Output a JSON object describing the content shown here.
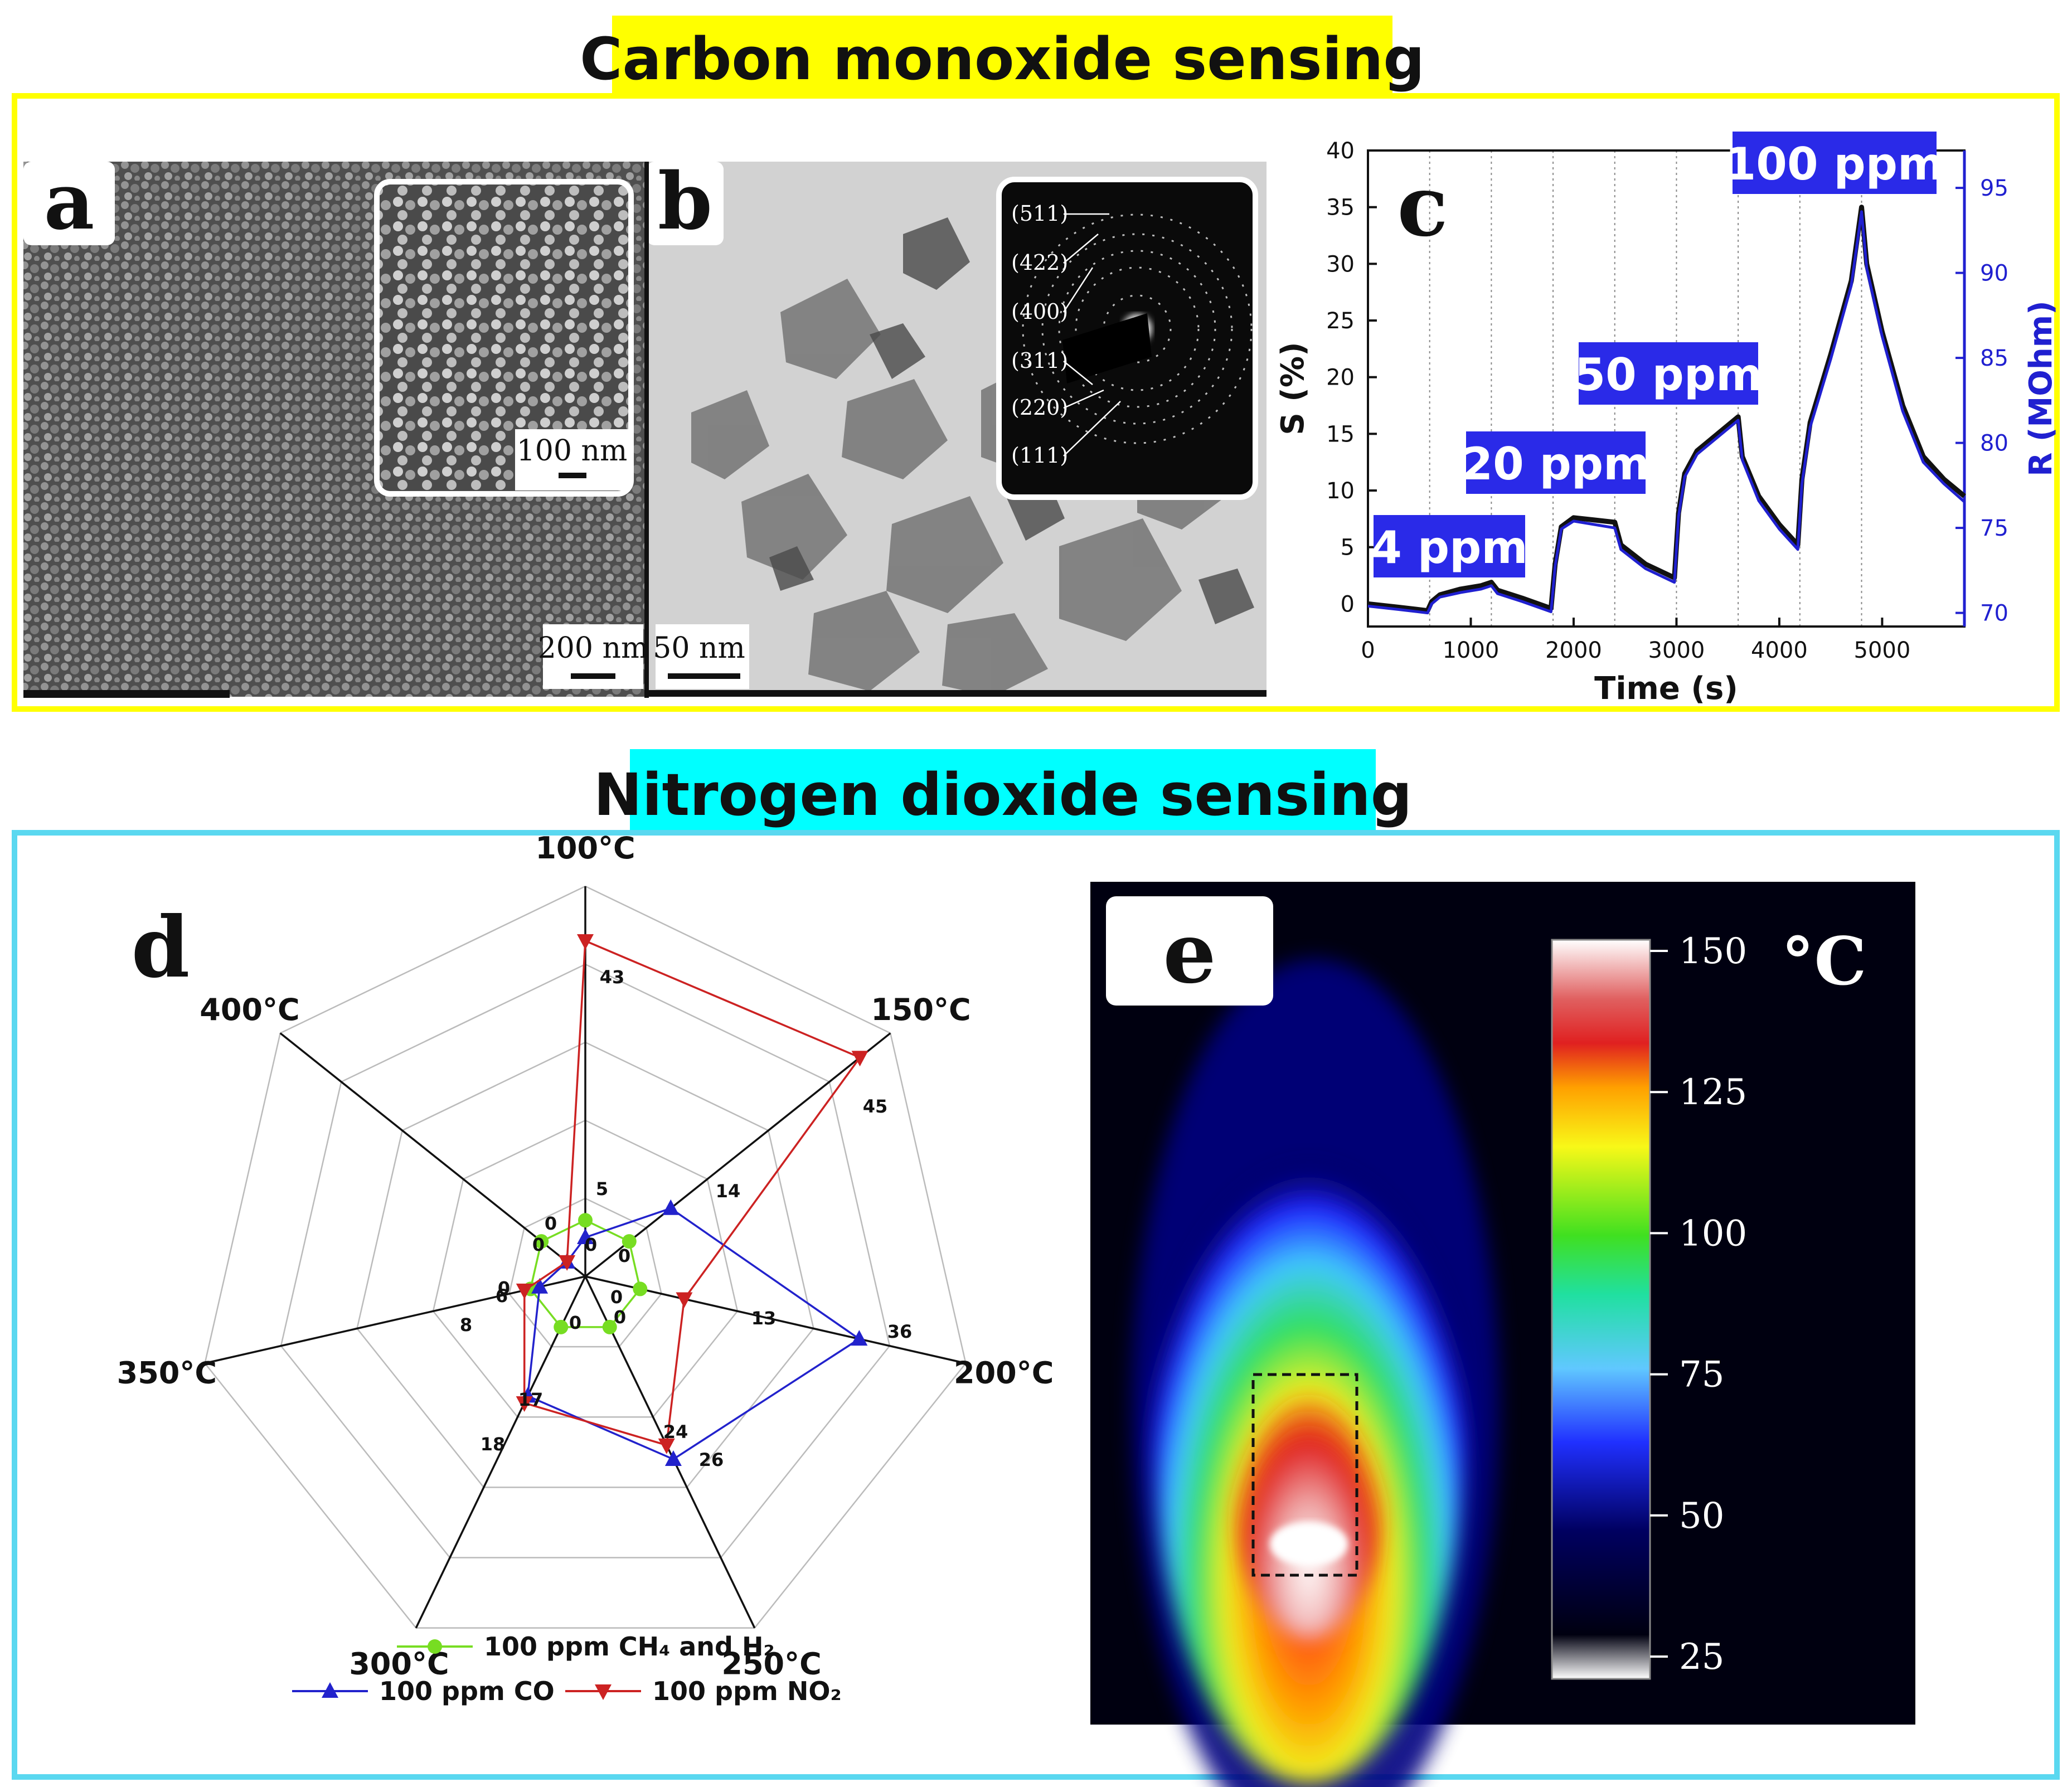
{
  "top_section": {
    "title": "Carbon monoxide sensing",
    "title_bg": "#ffff00",
    "frame_color": "#ffff00"
  },
  "bottom_section": {
    "title": "Nitrogen dioxide sensing",
    "title_bg": "#00ffff",
    "frame_color": "#5ad8f0"
  },
  "panel_a": {
    "label": "a",
    "scale_bar": "200 nm",
    "inset_scale_bar": "100 nm"
  },
  "panel_b": {
    "label": "b",
    "scale_bar": "50 nm",
    "saed_rings": [
      "(511)",
      "(422)",
      "(400)",
      "(311)",
      "(220)",
      "(111)"
    ]
  },
  "chart_data": [
    {
      "panel": "c",
      "type": "line",
      "xlabel": "Time (s)",
      "ylabel": "S (%)",
      "y2label": "R (MOhm)",
      "xlim": [
        0,
        5800
      ],
      "ylim": [
        -2,
        40
      ],
      "y2lim": [
        69.2,
        97.2
      ],
      "x_ticks": [
        0,
        1000,
        2000,
        3000,
        4000,
        5000
      ],
      "y_ticks": [
        0,
        5,
        10,
        15,
        20,
        25,
        30,
        35,
        40
      ],
      "y2_ticks": [
        70,
        75,
        80,
        85,
        90,
        95
      ],
      "y2_color": "#2020d0",
      "exposure_marks_x": [
        600,
        1200,
        1800,
        2400,
        3000,
        3600,
        4200,
        4800
      ],
      "concentration_labels": [
        "4 ppm",
        "20 ppm",
        "50 ppm",
        "100 ppm"
      ],
      "label_bg": "#2a2ae8",
      "series": [
        {
          "color": "#111111",
          "x": [
            0,
            300,
            580,
            620,
            700,
            900,
            1100,
            1200,
            1260,
            1500,
            1780,
            1820,
            1880,
            2000,
            2200,
            2400,
            2460,
            2700,
            2980,
            3020,
            3080,
            3200,
            3400,
            3600,
            3640,
            3800,
            4000,
            4180,
            4220,
            4300,
            4500,
            4700,
            4800,
            4850,
            5000,
            5200,
            5400,
            5600,
            5800
          ],
          "y": [
            0,
            -0.3,
            -0.6,
            0.2,
            0.8,
            1.3,
            1.6,
            1.9,
            1.2,
            0.5,
            -0.4,
            3.5,
            6.8,
            7.6,
            7.4,
            7.2,
            5.2,
            3.5,
            2.3,
            8,
            11.5,
            13.5,
            15,
            16.5,
            13,
            9.5,
            7,
            5.2,
            11,
            16,
            22,
            28.5,
            35,
            30,
            24,
            17.5,
            13,
            11,
            9.5
          ]
        },
        {
          "color": "#2020d0",
          "x": [
            0,
            300,
            580,
            620,
            700,
            900,
            1100,
            1200,
            1260,
            1500,
            1780,
            1820,
            1880,
            2000,
            2200,
            2400,
            2460,
            2700,
            2980,
            3020,
            3080,
            3200,
            3400,
            3600,
            3640,
            3800,
            4000,
            4180,
            4220,
            4300,
            4500,
            4700,
            4800,
            4850,
            5000,
            5200,
            5400,
            5600,
            5800
          ],
          "y": [
            -0.2,
            -0.5,
            -0.8,
            0,
            0.6,
            1,
            1.3,
            1.6,
            0.9,
            0.2,
            -0.7,
            3.3,
            6.6,
            7.3,
            7,
            6.7,
            4.8,
            3.1,
            1.9,
            7.7,
            11.2,
            13.2,
            14.7,
            16.2,
            12.7,
            9.1,
            6.6,
            4.8,
            10.6,
            15.6,
            21.6,
            28.1,
            34.6,
            29.6,
            23.6,
            17,
            12.5,
            10.6,
            9
          ]
        }
      ]
    },
    {
      "panel": "d",
      "type": "radar",
      "axes": [
        "100°C",
        "150°C",
        "200°C",
        "250°C",
        "300°C",
        "350°C",
        "400°C"
      ],
      "rmax": 50,
      "grid_rings": 5,
      "series": [
        {
          "name": "100 ppm CH₄ and H₂",
          "color": "#77dd22",
          "marker": "circle",
          "values": [
            0,
            0,
            0,
            0,
            0,
            0,
            0
          ]
        },
        {
          "name": "100 ppm CO",
          "color": "#2222cc",
          "marker": "triangle-up",
          "values": [
            5,
            14,
            36,
            26,
            17,
            6,
            0
          ]
        },
        {
          "name": "100 ppm NO₂",
          "color": "#cc2222",
          "marker": "triangle-down",
          "values": [
            43,
            45,
            13,
            24,
            18,
            8,
            0
          ]
        }
      ],
      "point_labels": [
        {
          "text": "43"
        },
        {
          "text": "45"
        },
        {
          "text": "14"
        },
        {
          "text": "13"
        },
        {
          "text": "36"
        },
        {
          "text": "5"
        },
        {
          "text": "24"
        },
        {
          "text": "26"
        },
        {
          "text": "17"
        },
        {
          "text": "18"
        },
        {
          "text": "6"
        },
        {
          "text": "8"
        },
        {
          "text": "0"
        },
        {
          "text": "0"
        },
        {
          "text": "0"
        },
        {
          "text": "0"
        },
        {
          "text": "0"
        },
        {
          "text": "0"
        },
        {
          "text": "0"
        },
        {
          "text": "0"
        }
      ]
    },
    {
      "panel": "e",
      "type": "heatmap",
      "colorbar_ticks": [
        150,
        125,
        100,
        75,
        50,
        25
      ],
      "colorbar_unit": "°C",
      "colorbar_range": [
        25,
        150
      ],
      "hotspot_max": 150
    }
  ],
  "panel_c": {
    "label": "c"
  },
  "panel_d": {
    "label": "d"
  },
  "panel_e": {
    "label": "e"
  }
}
